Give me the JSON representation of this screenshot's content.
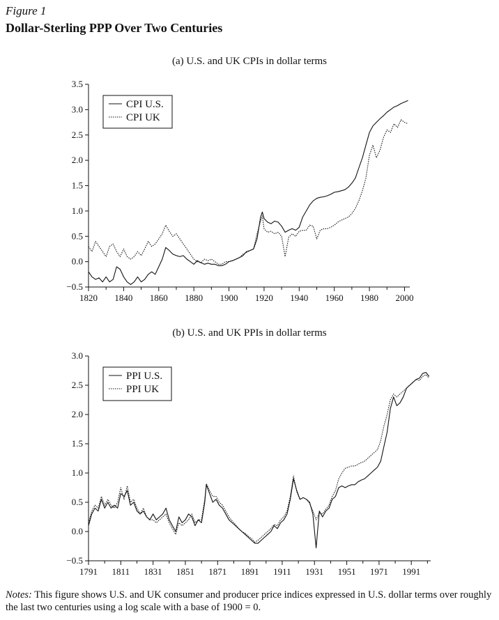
{
  "figure_label": "Figure 1",
  "figure_title": "Dollar-Sterling PPP Over Two Centuries",
  "notes_label": "Notes:",
  "notes_text": "This figure shows U.S. and UK consumer and producer price indices expressed in U.S. dollar terms over roughly the last two centuries using a log scale with a base of 1900 = 0.",
  "chart_data": [
    {
      "type": "line",
      "title": "(a)  U.S. and UK CPIs in dollar terms",
      "xlabel": "",
      "ylabel": "",
      "xlim": [
        1820,
        2003
      ],
      "ylim": [
        -0.5,
        3.5
      ],
      "xticks": [
        1820,
        1840,
        1860,
        1880,
        1900,
        1920,
        1940,
        1960,
        1980,
        2000
      ],
      "yticks": [
        "−0.5",
        "0.0",
        "0.5",
        "1.0",
        "1.5",
        "2.0",
        "2.5",
        "3.0",
        "3.5"
      ],
      "legend_position": "top-left",
      "series": [
        {
          "name": "CPI U.S.",
          "style": "solid",
          "color": "#111111",
          "x": [
            1820,
            1822,
            1824,
            1826,
            1828,
            1830,
            1832,
            1834,
            1836,
            1838,
            1840,
            1842,
            1844,
            1846,
            1848,
            1850,
            1852,
            1854,
            1856,
            1858,
            1860,
            1862,
            1864,
            1866,
            1868,
            1870,
            1872,
            1874,
            1876,
            1878,
            1880,
            1882,
            1884,
            1886,
            1888,
            1890,
            1892,
            1894,
            1896,
            1898,
            1900,
            1902,
            1904,
            1906,
            1908,
            1910,
            1912,
            1914,
            1916,
            1918,
            1919,
            1920,
            1922,
            1924,
            1926,
            1928,
            1930,
            1932,
            1934,
            1936,
            1938,
            1940,
            1942,
            1944,
            1946,
            1948,
            1950,
            1952,
            1954,
            1956,
            1958,
            1960,
            1962,
            1964,
            1966,
            1968,
            1970,
            1972,
            1974,
            1976,
            1978,
            1980,
            1982,
            1984,
            1986,
            1988,
            1990,
            1992,
            1994,
            1996,
            1998,
            2000,
            2002
          ],
          "y": [
            -0.2,
            -0.3,
            -0.35,
            -0.32,
            -0.4,
            -0.3,
            -0.4,
            -0.35,
            -0.1,
            -0.15,
            -0.3,
            -0.4,
            -0.45,
            -0.4,
            -0.3,
            -0.4,
            -0.35,
            -0.25,
            -0.2,
            -0.25,
            -0.1,
            0.05,
            0.28,
            0.22,
            0.15,
            0.12,
            0.1,
            0.12,
            0.05,
            0.0,
            -0.05,
            0.02,
            -0.02,
            -0.05,
            -0.03,
            -0.05,
            -0.05,
            -0.08,
            -0.08,
            -0.05,
            0.0,
            0.02,
            0.05,
            0.08,
            0.12,
            0.2,
            0.22,
            0.25,
            0.45,
            0.88,
            0.98,
            0.85,
            0.78,
            0.75,
            0.8,
            0.78,
            0.7,
            0.58,
            0.62,
            0.65,
            0.62,
            0.68,
            0.88,
            1.0,
            1.12,
            1.2,
            1.25,
            1.27,
            1.28,
            1.3,
            1.33,
            1.37,
            1.38,
            1.4,
            1.42,
            1.47,
            1.55,
            1.65,
            1.85,
            2.05,
            2.3,
            2.55,
            2.68,
            2.75,
            2.82,
            2.88,
            2.95,
            3.0,
            3.05,
            3.08,
            3.12,
            3.15,
            3.18
          ]
        },
        {
          "name": "CPI UK",
          "style": "dotted",
          "color": "#111111",
          "x": [
            1820,
            1822,
            1824,
            1826,
            1828,
            1830,
            1832,
            1834,
            1836,
            1838,
            1840,
            1842,
            1844,
            1846,
            1848,
            1850,
            1852,
            1854,
            1856,
            1858,
            1860,
            1862,
            1864,
            1866,
            1868,
            1870,
            1872,
            1874,
            1876,
            1878,
            1880,
            1882,
            1884,
            1886,
            1888,
            1890,
            1892,
            1894,
            1896,
            1898,
            1900,
            1902,
            1904,
            1906,
            1908,
            1910,
            1912,
            1914,
            1916,
            1918,
            1919,
            1920,
            1922,
            1924,
            1926,
            1928,
            1930,
            1932,
            1934,
            1936,
            1938,
            1940,
            1942,
            1944,
            1946,
            1948,
            1950,
            1952,
            1954,
            1956,
            1958,
            1960,
            1962,
            1964,
            1966,
            1968,
            1970,
            1972,
            1974,
            1976,
            1978,
            1980,
            1982,
            1984,
            1986,
            1988,
            1990,
            1992,
            1994,
            1996,
            1998,
            2000,
            2002
          ],
          "y": [
            0.3,
            0.2,
            0.4,
            0.3,
            0.2,
            0.1,
            0.3,
            0.35,
            0.2,
            0.1,
            0.25,
            0.1,
            0.05,
            0.1,
            0.2,
            0.12,
            0.25,
            0.4,
            0.3,
            0.35,
            0.45,
            0.55,
            0.72,
            0.6,
            0.5,
            0.55,
            0.45,
            0.35,
            0.25,
            0.15,
            0.05,
            0.0,
            -0.02,
            0.05,
            0.02,
            0.05,
            0.0,
            -0.05,
            -0.05,
            0.0,
            0.0,
            0.02,
            0.05,
            0.08,
            0.15,
            0.18,
            0.22,
            0.25,
            0.55,
            0.8,
            0.9,
            0.65,
            0.58,
            0.6,
            0.55,
            0.58,
            0.5,
            0.1,
            0.48,
            0.55,
            0.5,
            0.6,
            0.62,
            0.62,
            0.72,
            0.7,
            0.45,
            0.62,
            0.65,
            0.65,
            0.68,
            0.72,
            0.78,
            0.82,
            0.85,
            0.88,
            0.95,
            1.05,
            1.2,
            1.4,
            1.65,
            2.1,
            2.3,
            2.05,
            2.2,
            2.45,
            2.6,
            2.55,
            2.72,
            2.65,
            2.8,
            2.75,
            2.72
          ]
        }
      ]
    },
    {
      "type": "line",
      "title": "(b)  U.S. and UK PPIs in dollar terms",
      "xlabel": "",
      "ylabel": "",
      "xlim": [
        1791,
        2003
      ],
      "ylim": [
        -0.5,
        3.0
      ],
      "xticks": [
        1791,
        1811,
        1831,
        1851,
        1871,
        1891,
        1911,
        1931,
        1951,
        1971,
        1991
      ],
      "yticks": [
        "−0.5",
        "0.0",
        "0.5",
        "1.0",
        "1.5",
        "2.0",
        "2.5",
        "3.0"
      ],
      "legend_position": "top-left",
      "series": [
        {
          "name": "PPI U.S.",
          "style": "solid",
          "color": "#111111",
          "x": [
            1791,
            1793,
            1795,
            1797,
            1799,
            1801,
            1803,
            1805,
            1807,
            1809,
            1811,
            1813,
            1815,
            1817,
            1819,
            1821,
            1823,
            1825,
            1827,
            1829,
            1831,
            1833,
            1835,
            1837,
            1839,
            1841,
            1843,
            1845,
            1847,
            1849,
            1851,
            1853,
            1855,
            1857,
            1859,
            1861,
            1863,
            1864,
            1866,
            1868,
            1870,
            1872,
            1874,
            1876,
            1878,
            1880,
            1882,
            1884,
            1886,
            1888,
            1890,
            1892,
            1894,
            1896,
            1898,
            1900,
            1902,
            1904,
            1906,
            1908,
            1910,
            1912,
            1914,
            1916,
            1918,
            1920,
            1922,
            1924,
            1926,
            1928,
            1930,
            1932,
            1934,
            1936,
            1938,
            1940,
            1942,
            1944,
            1946,
            1948,
            1950,
            1952,
            1954,
            1956,
            1958,
            1960,
            1962,
            1964,
            1966,
            1968,
            1970,
            1972,
            1974,
            1976,
            1978,
            1980,
            1982,
            1984,
            1986,
            1988,
            1990,
            1992,
            1994,
            1996,
            1998,
            2000,
            2002
          ],
          "y": [
            0.1,
            0.3,
            0.4,
            0.35,
            0.55,
            0.4,
            0.5,
            0.4,
            0.45,
            0.4,
            0.65,
            0.6,
            0.7,
            0.45,
            0.5,
            0.35,
            0.3,
            0.35,
            0.25,
            0.2,
            0.3,
            0.2,
            0.25,
            0.3,
            0.4,
            0.2,
            0.1,
            0.0,
            0.25,
            0.15,
            0.2,
            0.3,
            0.25,
            0.1,
            0.2,
            0.15,
            0.5,
            0.8,
            0.65,
            0.5,
            0.55,
            0.45,
            0.4,
            0.3,
            0.2,
            0.15,
            0.1,
            0.05,
            0.0,
            -0.05,
            -0.1,
            -0.15,
            -0.2,
            -0.2,
            -0.15,
            -0.1,
            -0.05,
            0.0,
            0.1,
            0.05,
            0.15,
            0.2,
            0.3,
            0.55,
            0.9,
            0.7,
            0.55,
            0.58,
            0.55,
            0.5,
            0.3,
            -0.28,
            0.35,
            0.25,
            0.35,
            0.4,
            0.55,
            0.6,
            0.75,
            0.78,
            0.75,
            0.78,
            0.8,
            0.8,
            0.85,
            0.88,
            0.9,
            0.95,
            1.0,
            1.05,
            1.1,
            1.2,
            1.45,
            1.7,
            2.1,
            2.3,
            2.15,
            2.2,
            2.3,
            2.45,
            2.5,
            2.55,
            2.6,
            2.62,
            2.7,
            2.72,
            2.65
          ]
        },
        {
          "name": "PPI UK",
          "style": "dotted",
          "color": "#111111",
          "x": [
            1791,
            1793,
            1795,
            1797,
            1799,
            1801,
            1803,
            1805,
            1807,
            1809,
            1811,
            1813,
            1815,
            1817,
            1819,
            1821,
            1823,
            1825,
            1827,
            1829,
            1831,
            1833,
            1835,
            1837,
            1839,
            1841,
            1843,
            1845,
            1847,
            1849,
            1851,
            1853,
            1855,
            1857,
            1859,
            1861,
            1863,
            1864,
            1866,
            1868,
            1870,
            1872,
            1874,
            1876,
            1878,
            1880,
            1882,
            1884,
            1886,
            1888,
            1890,
            1892,
            1894,
            1896,
            1898,
            1900,
            1902,
            1904,
            1906,
            1908,
            1910,
            1912,
            1914,
            1916,
            1918,
            1920,
            1922,
            1924,
            1926,
            1928,
            1930,
            1932,
            1934,
            1936,
            1938,
            1940,
            1942,
            1944,
            1946,
            1948,
            1950,
            1952,
            1954,
            1956,
            1958,
            1960,
            1962,
            1964,
            1966,
            1968,
            1970,
            1972,
            1974,
            1976,
            1978,
            1980,
            1982,
            1984,
            1986,
            1988,
            1990,
            1992,
            1994,
            1996,
            1998,
            2000,
            2002
          ],
          "y": [
            0.15,
            0.35,
            0.45,
            0.4,
            0.6,
            0.45,
            0.55,
            0.45,
            0.4,
            0.5,
            0.75,
            0.55,
            0.78,
            0.5,
            0.55,
            0.4,
            0.3,
            0.4,
            0.25,
            0.2,
            0.2,
            0.15,
            0.2,
            0.25,
            0.3,
            0.15,
            0.05,
            -0.05,
            0.15,
            0.1,
            0.15,
            0.2,
            0.3,
            0.15,
            0.2,
            0.2,
            0.55,
            0.82,
            0.7,
            0.6,
            0.6,
            0.5,
            0.45,
            0.35,
            0.25,
            0.18,
            0.12,
            0.05,
            0.0,
            -0.03,
            -0.08,
            -0.12,
            -0.18,
            -0.15,
            -0.1,
            -0.05,
            0.0,
            0.05,
            0.12,
            0.1,
            0.2,
            0.25,
            0.35,
            0.6,
            0.95,
            0.68,
            0.55,
            0.58,
            0.55,
            0.48,
            0.35,
            0.2,
            0.32,
            0.3,
            0.38,
            0.45,
            0.6,
            0.7,
            0.9,
            1.0,
            1.08,
            1.1,
            1.12,
            1.12,
            1.15,
            1.18,
            1.2,
            1.25,
            1.3,
            1.35,
            1.4,
            1.55,
            1.8,
            2.0,
            2.25,
            2.35,
            2.3,
            2.35,
            2.4,
            2.45,
            2.5,
            2.55,
            2.6,
            2.58,
            2.65,
            2.68,
            2.62
          ]
        }
      ]
    }
  ]
}
